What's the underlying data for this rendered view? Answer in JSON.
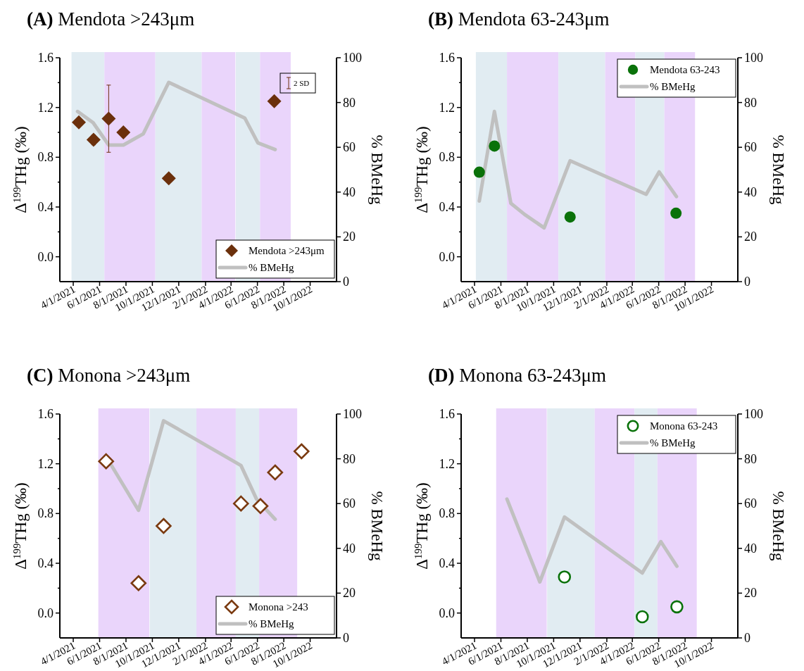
{
  "chart_data": [
    {
      "type": "scatter",
      "title": "(A) Mendota >243μm",
      "ylabel": "Δ$^{199}$THg (‰)",
      "y2label": "% BMeHg",
      "annotations": [
        "2 SD"
      ],
      "xlim": [
        "2021-03-01",
        "2022-12-01"
      ],
      "xticks": [
        {
          "value": "2021-04-01",
          "label": "4/1/2021"
        },
        {
          "value": "2021-06-01",
          "label": "6/1/2021"
        },
        {
          "value": "2021-08-01",
          "label": "8/1/2021"
        },
        {
          "value": "2021-10-01",
          "label": "10/1/2021"
        },
        {
          "value": "2021-12-01",
          "label": "12/1/2021"
        },
        {
          "value": "2022-02-01",
          "label": "2/1/2022"
        },
        {
          "value": "2022-04-01",
          "label": "4/1/2022"
        },
        {
          "value": "2022-06-01",
          "label": "6/1/2022"
        },
        {
          "value": "2022-08-01",
          "label": "8/1/2022"
        },
        {
          "value": "2022-10-01",
          "label": "10/1/2022"
        }
      ],
      "ylim": [
        -0.2,
        1.6
      ],
      "yticks": [
        {
          "value": 0,
          "label": "0.0"
        },
        {
          "value": 0.2,
          "label": null
        },
        0.4,
        {
          "value": 0.6,
          "label": null
        },
        0.8,
        {
          "value": 1,
          "label": null
        },
        1.2,
        {
          "value": 1.4,
          "label": null
        },
        1.6
      ],
      "y2lim": [
        0,
        100
      ],
      "y2ticks": [
        0,
        20,
        40,
        60,
        80,
        100
      ],
      "legend": "bottom right",
      "bands": [
        {
          "axis": "x",
          "from": "2021-03-28",
          "to": "2021-06-12",
          "color": "#e1ecf2"
        },
        {
          "axis": "x",
          "from": "2021-06-12",
          "to": "2021-10-08",
          "color": "#ead5fb"
        },
        {
          "axis": "x",
          "from": "2021-10-08",
          "to": "2022-01-23",
          "color": "#e1ecf2"
        },
        {
          "axis": "x",
          "from": "2022-01-23",
          "to": "2022-04-11",
          "color": "#ead5fb"
        },
        {
          "axis": "x",
          "from": "2022-04-12",
          "to": "2022-06-07",
          "color": "#e1ecf2"
        },
        {
          "axis": "x",
          "from": "2022-06-07",
          "to": "2022-08-17",
          "color": "#ead5fb"
        }
      ],
      "series": [
        {
          "name": "Mendota >243μm",
          "color": "#6b300c",
          "marker": "diamond",
          "x": [
            "2021-04-14",
            "2021-05-18",
            "2021-06-22",
            "2021-07-26",
            "2021-11-08",
            "2022-07-10"
          ],
          "values": [
            1.08,
            0.94,
            1.11,
            1.0,
            0.63,
            1.25
          ],
          "errors": [
            null,
            0.04,
            0.27,
            null,
            null,
            null
          ]
        },
        {
          "name": "% BMeHg",
          "type": "line",
          "axis": "y2",
          "color": "#c0c0c0",
          "x": [
            "2021-04-11",
            "2021-05-17",
            "2021-06-22",
            "2021-07-26",
            "2021-09-10",
            "2021-11-08",
            "2022-05-03",
            "2022-06-02",
            "2022-07-12"
          ],
          "values": [
            76,
            71,
            61,
            61,
            66,
            89,
            73,
            62,
            59
          ]
        }
      ]
    },
    {
      "type": "scatter",
      "title": "(B) Mendota 63-243μm",
      "ylabel": "Δ$^{199}$THg (‰)",
      "y2label": "% BMeHg",
      "xlim": [
        "2021-03-01",
        "2022-12-01"
      ],
      "xticks": [
        {
          "value": "2021-04-01",
          "label": "4/1/2021"
        },
        {
          "value": "2021-06-01",
          "label": "6/1/2021"
        },
        {
          "value": "2021-08-01",
          "label": "8/1/2021"
        },
        {
          "value": "2021-10-01",
          "label": "10/1/2021"
        },
        {
          "value": "2021-12-01",
          "label": "12/1/2021"
        },
        {
          "value": "2022-02-01",
          "label": "2/1/2022"
        },
        {
          "value": "2022-04-01",
          "label": "4/1/2022"
        },
        {
          "value": "2022-06-01",
          "label": "6/1/2022"
        },
        {
          "value": "2022-08-01",
          "label": "8/1/2022"
        },
        {
          "value": "2022-10-01",
          "label": "10/1/2022"
        }
      ],
      "ylim": [
        -0.2,
        1.6
      ],
      "yticks": [
        {
          "value": 0,
          "label": "0.0"
        },
        {
          "value": 0.2,
          "label": null
        },
        0.4,
        {
          "value": 0.6,
          "label": null
        },
        0.8,
        {
          "value": 1,
          "label": null
        },
        1.2,
        {
          "value": 1.4,
          "label": null
        },
        1.6
      ],
      "y2lim": [
        0,
        100
      ],
      "y2ticks": [
        0,
        20,
        40,
        60,
        80,
        100
      ],
      "legend": "top right",
      "bands": [
        {
          "axis": "x",
          "from": "2021-04-04",
          "to": "2021-06-15",
          "color": "#e1ecf2"
        },
        {
          "axis": "x",
          "from": "2021-06-15",
          "to": "2021-10-12",
          "color": "#ead5fb"
        },
        {
          "axis": "x",
          "from": "2021-10-12",
          "to": "2022-01-28",
          "color": "#e1ecf2"
        },
        {
          "axis": "x",
          "from": "2022-01-28",
          "to": "2022-04-08",
          "color": "#ead5fb"
        },
        {
          "axis": "x",
          "from": "2022-04-08",
          "to": "2022-06-14",
          "color": "#e1ecf2"
        },
        {
          "axis": "x",
          "from": "2022-06-14",
          "to": "2022-08-24",
          "color": "#ead5fb"
        }
      ],
      "series": [
        {
          "name": "Mendota 63-243",
          "color": "#0a720a",
          "marker": "circle",
          "x": [
            "2021-04-12",
            "2021-05-17",
            "2021-11-08",
            "2022-07-11"
          ],
          "values": [
            0.68,
            0.89,
            0.32,
            0.35
          ]
        },
        {
          "name": "% BMeHg",
          "type": "line",
          "axis": "y2",
          "color": "#c0c0c0",
          "x": [
            "2021-04-12",
            "2021-05-17",
            "2021-06-24",
            "2021-07-26",
            "2021-09-09",
            "2021-11-08",
            "2022-05-03",
            "2022-06-02",
            "2022-07-12"
          ],
          "values": [
            36,
            76,
            35,
            30,
            24,
            54,
            39,
            49,
            38
          ]
        }
      ]
    },
    {
      "type": "scatter",
      "title": "(C) Monona >243μm",
      "ylabel": "Δ$^{199}$THg (‰)",
      "y2label": "% BMeHg",
      "xlim": [
        "2021-03-01",
        "2022-12-01"
      ],
      "xticks": [
        {
          "value": "2021-04-01",
          "label": "4/1/2021"
        },
        {
          "value": "2021-06-01",
          "label": "6/1/2021"
        },
        {
          "value": "2021-08-01",
          "label": "8/1/2021"
        },
        {
          "value": "2021-10-01",
          "label": "10/1/2021"
        },
        {
          "value": "2021-12-01",
          "label": "12/1/2021"
        },
        {
          "value": "2022-02-01",
          "label": "2/1/2022"
        },
        {
          "value": "2022-04-01",
          "label": "4/1/2022"
        },
        {
          "value": "2022-06-01",
          "label": "6/1/2022"
        },
        {
          "value": "2022-08-01",
          "label": "8/1/2022"
        },
        {
          "value": "2022-10-01",
          "label": "10/1/2022"
        }
      ],
      "ylim": [
        -0.2,
        1.6
      ],
      "yticks": [
        {
          "value": 0,
          "label": "0.0"
        },
        {
          "value": 0.2,
          "label": null
        },
        0.4,
        {
          "value": 0.6,
          "label": null
        },
        0.8,
        {
          "value": 1,
          "label": null
        },
        1.2,
        {
          "value": 1.4,
          "label": null
        },
        1.6
      ],
      "y2lim": [
        0,
        100
      ],
      "y2ticks": [
        0,
        20,
        40,
        60,
        80,
        100
      ],
      "legend": "bottom right",
      "bands": [
        {
          "axis": "x",
          "from": "2021-05-29",
          "to": "2021-09-24",
          "color": "#ead5fb"
        },
        {
          "axis": "x",
          "from": "2021-09-25",
          "to": "2022-01-11",
          "color": "#e1ecf2"
        },
        {
          "axis": "x",
          "from": "2022-01-11",
          "to": "2022-04-12",
          "color": "#ead5fb"
        },
        {
          "axis": "x",
          "from": "2022-04-12",
          "to": "2022-06-05",
          "color": "#e1ecf2"
        },
        {
          "axis": "x",
          "from": "2022-06-05",
          "to": "2022-09-01",
          "color": "#ead5fb"
        }
      ],
      "series": [
        {
          "name": "Monona >243",
          "color": "#7a3a10",
          "marker": "diamond-open",
          "x": [
            "2021-06-16",
            "2021-08-30",
            "2021-10-27",
            "2022-04-24",
            "2022-06-08",
            "2022-07-12",
            "2022-09-11"
          ],
          "values": [
            1.22,
            0.24,
            0.7,
            0.88,
            0.86,
            1.13,
            1.3
          ]
        },
        {
          "name": "% BMeHg",
          "type": "line",
          "axis": "y2",
          "color": "#c0c0c0",
          "x": [
            "2021-06-16",
            "2021-08-30",
            "2021-10-27",
            "2022-04-24",
            "2022-05-30",
            "2022-07-12"
          ],
          "values": [
            81,
            57,
            97,
            77,
            62,
            53
          ]
        }
      ]
    },
    {
      "type": "scatter",
      "title": "(D) Monona 63-243μm",
      "ylabel": "Δ$^{199}$THg (‰)",
      "y2label": "% BMeHg",
      "xlim": [
        "2021-03-01",
        "2022-12-01"
      ],
      "xticks": [
        {
          "value": "2021-04-01",
          "label": "4/1/2021"
        },
        {
          "value": "2021-06-01",
          "label": "6/1/2021"
        },
        {
          "value": "2021-08-01",
          "label": "8/1/2021"
        },
        {
          "value": "2021-10-01",
          "label": "10/1/2021"
        },
        {
          "value": "2021-12-01",
          "label": "12/1/2021"
        },
        {
          "value": "2022-02-01",
          "label": "2/1/2022"
        },
        {
          "value": "2022-04-01",
          "label": "4/1/2022"
        },
        {
          "value": "2022-06-01",
          "label": "6/1/2022"
        },
        {
          "value": "2022-08-01",
          "label": "8/1/2022"
        },
        {
          "value": "2022-10-01",
          "label": "10/1/2022"
        }
      ],
      "ylim": [
        -0.2,
        1.6
      ],
      "yticks": [
        {
          "value": 0,
          "label": "0.0"
        },
        {
          "value": 0.2,
          "label": null
        },
        0.4,
        {
          "value": 0.6,
          "label": null
        },
        0.8,
        {
          "value": 1,
          "label": null
        },
        1.2,
        {
          "value": 1.4,
          "label": null
        },
        1.6
      ],
      "y2lim": [
        0,
        100
      ],
      "y2ticks": [
        0,
        20,
        40,
        60,
        80,
        100
      ],
      "legend": "top right",
      "bands": [
        {
          "axis": "x",
          "from": "2021-05-21",
          "to": "2021-09-15",
          "color": "#ead5fb"
        },
        {
          "axis": "x",
          "from": "2021-09-16",
          "to": "2022-01-04",
          "color": "#e1ecf2"
        },
        {
          "axis": "x",
          "from": "2022-01-04",
          "to": "2022-04-06",
          "color": "#ead5fb"
        },
        {
          "axis": "x",
          "from": "2022-04-06",
          "to": "2022-05-29",
          "color": "#e1ecf2"
        },
        {
          "axis": "x",
          "from": "2022-05-29",
          "to": "2022-08-28",
          "color": "#ead5fb"
        }
      ],
      "series": [
        {
          "name": "Monona 63-243",
          "color": "#0a720a",
          "marker": "circle-open",
          "x": [
            "2021-10-26",
            "2022-04-24",
            "2022-07-13"
          ],
          "values": [
            0.29,
            -0.03,
            0.05
          ]
        },
        {
          "name": "% BMeHg",
          "type": "line",
          "axis": "y2",
          "color": "#c0c0c0",
          "x": [
            "2021-06-15",
            "2021-08-30",
            "2021-10-26",
            "2022-04-24",
            "2022-06-06",
            "2022-07-13"
          ],
          "values": [
            62,
            25,
            54,
            29,
            43,
            32
          ]
        }
      ]
    }
  ]
}
